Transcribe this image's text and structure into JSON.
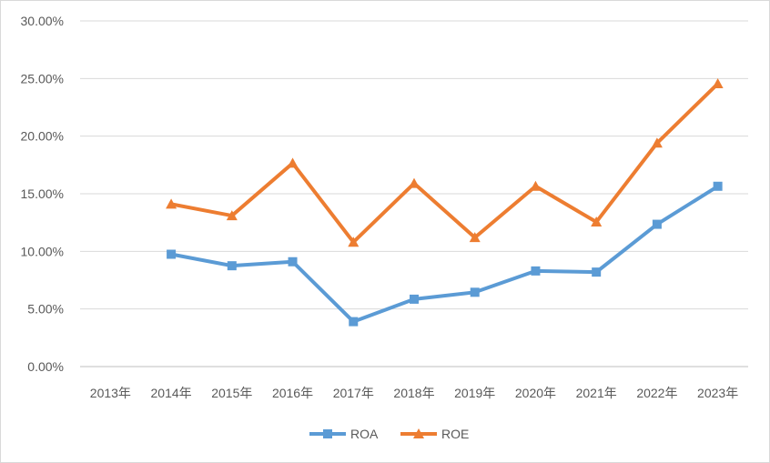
{
  "chart_data": {
    "type": "line",
    "categories": [
      "2013年",
      "2014年",
      "2015年",
      "2016年",
      "2017年",
      "2018年",
      "2019年",
      "2020年",
      "2021年",
      "2022年",
      "2023年"
    ],
    "series": [
      {
        "name": "ROA",
        "color": "#5B9BD5",
        "marker": "square",
        "values": [
          null,
          9.75,
          8.75,
          9.1,
          3.9,
          5.85,
          6.45,
          8.3,
          8.2,
          12.35,
          15.65
        ]
      },
      {
        "name": "ROE",
        "color": "#ED7D31",
        "marker": "triangle",
        "values": [
          null,
          14.1,
          13.1,
          17.65,
          10.8,
          15.9,
          11.2,
          15.65,
          12.55,
          19.4,
          24.55
        ]
      }
    ],
    "y_ticks": [
      "0.00%",
      "5.00%",
      "10.00%",
      "15.00%",
      "20.00%",
      "25.00%",
      "30.00%"
    ],
    "ylim": [
      0,
      30
    ],
    "grid": true,
    "legend_position": "bottom",
    "title": "",
    "xlabel": "",
    "ylabel": ""
  }
}
